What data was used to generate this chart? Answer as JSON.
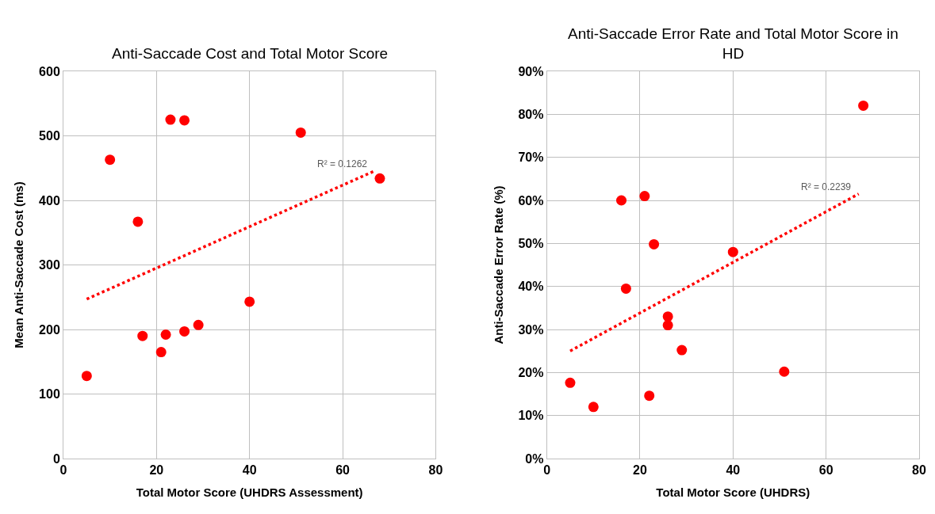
{
  "chart_data": [
    {
      "type": "scatter",
      "title": "Anti-Saccade Cost and Total Motor Score",
      "xlabel": "Total Motor Score (UHDRS Assessment)",
      "ylabel": "Mean Anti-Saccade Cost (ms)",
      "series": [
        {
          "color": "#ff0000",
          "x": [
            5,
            10,
            16,
            17,
            21,
            22,
            23,
            26,
            26,
            29,
            40,
            51,
            68
          ],
          "values": [
            128,
            463,
            367,
            190,
            165,
            192,
            525,
            524,
            197,
            207,
            243,
            505,
            434
          ]
        },
        {
          "type": "line",
          "color": "#ff0000",
          "x": [
            5,
            67
          ],
          "values": [
            247,
            446
          ],
          "line_style": "dotted",
          "marker": "none"
        }
      ],
      "marker": "circle",
      "xlim": [
        0,
        80
      ],
      "xticks": [
        0,
        20,
        40,
        60,
        80
      ],
      "ylim": [
        0,
        600
      ],
      "yticks": [
        0,
        100,
        200,
        300,
        400,
        500,
        600
      ],
      "grid": true,
      "annotations": [
        "R² = 0.1262"
      ]
    },
    {
      "type": "scatter",
      "title": "Anti-Saccade Error Rate and Total Motor Score in HD",
      "xlabel": "Total Motor Score (UHDRS)",
      "ylabel": "Anti-Saccade Error Rate (%)",
      "series": [
        {
          "color": "#ff0000",
          "x": [
            5,
            10,
            16,
            17,
            21,
            22,
            23,
            26,
            26,
            29,
            40,
            51,
            68
          ],
          "values": [
            17.6,
            12,
            60,
            39.5,
            61,
            14.6,
            49.8,
            33,
            31,
            25.2,
            48,
            20.2,
            82
          ]
        },
        {
          "type": "line",
          "color": "#ff0000",
          "x": [
            5,
            67
          ],
          "values": [
            25,
            61.5
          ],
          "line_style": "dotted",
          "marker": "none"
        }
      ],
      "marker": "circle",
      "xlim": [
        0,
        80
      ],
      "xticks": [
        0,
        20,
        40,
        60,
        80
      ],
      "ylim": [
        0,
        90
      ],
      "yticks": [
        {
          "value": 0,
          "label": "0%"
        },
        {
          "value": 10,
          "label": "10%"
        },
        {
          "value": 20,
          "label": "20%"
        },
        {
          "value": 30,
          "label": "30%"
        },
        {
          "value": 40,
          "label": "40%"
        },
        {
          "value": 50,
          "label": "50%"
        },
        {
          "value": 60,
          "label": "60%"
        },
        {
          "value": 70,
          "label": "70%"
        },
        {
          "value": 80,
          "label": "80%"
        },
        {
          "value": 90,
          "label": "90%"
        }
      ],
      "grid": true,
      "annotations": [
        "R² = 0.2239"
      ]
    }
  ]
}
